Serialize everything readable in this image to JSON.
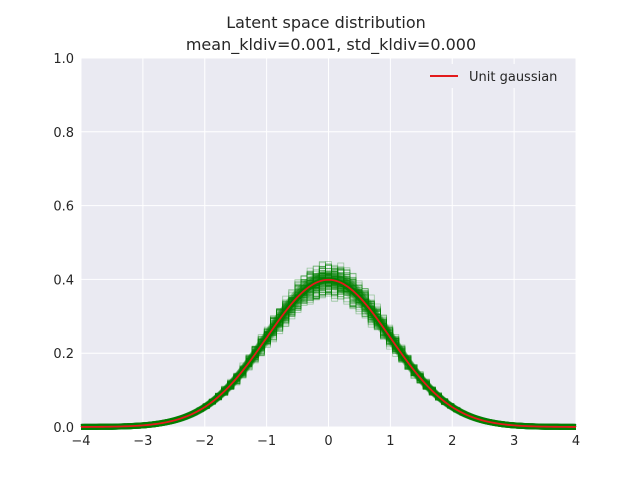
{
  "chart_data": {
    "type": "line",
    "title": "Latent space distribution",
    "subtitle": "mean_kldiv=0.001, std_kldiv=0.000",
    "xlabel": "",
    "ylabel": "",
    "xlim": [
      -4,
      4
    ],
    "ylim": [
      0,
      1.0
    ],
    "xticks": [
      "−4",
      "−3",
      "−2",
      "−1",
      "0",
      "1",
      "2",
      "3",
      "4"
    ],
    "yticks": [
      "0.0",
      "0.2",
      "0.4",
      "0.6",
      "0.8",
      "1.0"
    ],
    "grid": true,
    "legend_position": "top-right",
    "series": [
      {
        "name": "Unit gaussian",
        "color": "#e31a1c",
        "x": [
          -4,
          -3.5,
          -3,
          -2.5,
          -2,
          -1.5,
          -1,
          -0.5,
          0,
          0.5,
          1,
          1.5,
          2,
          2.5,
          3,
          3.5,
          4
        ],
        "y": [
          0.0001,
          0.0009,
          0.0044,
          0.0175,
          0.054,
          0.1295,
          0.242,
          0.3521,
          0.3989,
          0.3521,
          0.242,
          0.1295,
          0.054,
          0.0175,
          0.0044,
          0.0009,
          0.0001
        ]
      }
    ],
    "histograms": {
      "color": "#008000",
      "description_bins": 81,
      "range": [
        -4,
        4
      ],
      "spread": [
        0.32,
        0.48
      ]
    }
  },
  "colors": {
    "axes_background": "#eaeaf2",
    "grid": "#ffffff",
    "histogram": "#008000",
    "gaussian": "#e31a1c"
  }
}
